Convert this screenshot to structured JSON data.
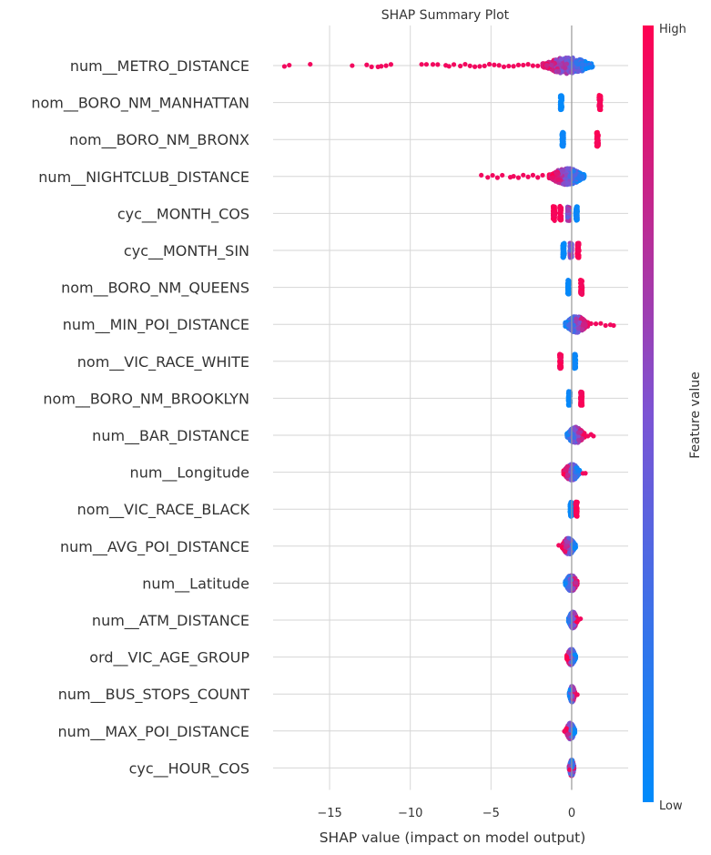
{
  "chart_data": {
    "type": "scatter",
    "title": "SHAP Summary Plot",
    "xlabel": "SHAP value (impact on model output)",
    "ylabel": "",
    "xlim": [
      -18.5,
      3.5
    ],
    "x_ticks": [
      -15,
      -10,
      -5,
      0
    ],
    "x_tick_labels": [
      "−15",
      "−10",
      "−5",
      "0"
    ],
    "grid": true,
    "colorbar": {
      "label": "Feature value",
      "high_label": "High",
      "low_label": "Low",
      "low_color": "#008bfb",
      "high_color": "#ff0051"
    },
    "features": [
      {
        "name": "num__METRO_DISTANCE",
        "min": -17.8,
        "max": 1.5,
        "dense_min": -1.8,
        "dense_max": 1.3,
        "high_side": "left",
        "outliers": [
          -17.8,
          -17.5,
          -16.2,
          -13.6,
          -12.7,
          -12.4,
          -12.0,
          -11.8,
          -11.5,
          -11.2,
          -9.3,
          -9.0,
          -8.6,
          -8.3,
          -7.8,
          -7.6,
          -7.3,
          -6.9,
          -6.6,
          -6.3,
          -6.0,
          -5.7,
          -5.4,
          -5.1,
          -4.8,
          -4.5,
          -4.2,
          -3.9,
          -3.6,
          -3.3,
          -3.0,
          -2.7,
          -2.4,
          -2.1
        ]
      },
      {
        "name": "nom__BORO_NM_MANHATTAN",
        "min": -0.7,
        "max": 1.8,
        "clusters": [
          {
            "center": -0.65,
            "color": "low"
          },
          {
            "center": 1.75,
            "color": "high"
          }
        ]
      },
      {
        "name": "nom__BORO_NM_BRONX",
        "min": -0.6,
        "max": 1.6,
        "clusters": [
          {
            "center": -0.55,
            "color": "low"
          },
          {
            "center": 1.6,
            "color": "high"
          }
        ]
      },
      {
        "name": "num__NIGHTCLUB_DISTANCE",
        "min": -5.6,
        "max": 0.9,
        "dense_min": -1.4,
        "dense_max": 0.8,
        "high_side": "left",
        "outliers": [
          -5.6,
          -5.2,
          -4.9,
          -4.6,
          -4.3,
          -3.8,
          -3.6,
          -3.3,
          -3.0,
          -2.7,
          -2.4,
          -2.1,
          -1.8
        ]
      },
      {
        "name": "cyc__MONTH_COS",
        "min": -1.3,
        "max": 0.5,
        "clusters": [
          {
            "center": -1.1,
            "color": "high"
          },
          {
            "center": -0.7,
            "color": "high"
          },
          {
            "center": -0.2,
            "color": "mixed"
          },
          {
            "center": 0.3,
            "color": "low"
          }
        ]
      },
      {
        "name": "cyc__MONTH_SIN",
        "min": -0.8,
        "max": 0.6,
        "clusters": [
          {
            "center": -0.5,
            "color": "low"
          },
          {
            "center": -0.05,
            "color": "mixed"
          },
          {
            "center": 0.4,
            "color": "high"
          }
        ]
      },
      {
        "name": "nom__BORO_NM_QUEENS",
        "min": -0.25,
        "max": 0.65,
        "clusters": [
          {
            "center": -0.2,
            "color": "low"
          },
          {
            "center": 0.6,
            "color": "high"
          }
        ]
      },
      {
        "name": "num__MIN_POI_DISTANCE",
        "min": -0.4,
        "max": 2.7,
        "dense_min": -0.4,
        "dense_max": 1.0,
        "high_side": "right",
        "outliers": [
          1.2,
          1.5,
          1.8,
          2.1,
          2.4,
          2.6
        ]
      },
      {
        "name": "nom__VIC_RACE_WHITE",
        "min": -0.75,
        "max": 0.25,
        "clusters": [
          {
            "center": -0.7,
            "color": "high"
          },
          {
            "center": 0.2,
            "color": "low"
          }
        ]
      },
      {
        "name": "nom__BORO_NM_BROOKLYN",
        "min": -0.2,
        "max": 0.65,
        "clusters": [
          {
            "center": -0.15,
            "color": "low"
          },
          {
            "center": 0.6,
            "color": "high"
          }
        ]
      },
      {
        "name": "num__BAR_DISTANCE",
        "min": -0.3,
        "max": 1.4,
        "dense_min": -0.3,
        "dense_max": 0.8,
        "high_side": "right",
        "outliers": [
          1.0,
          1.2,
          1.35
        ]
      },
      {
        "name": "num__Longitude",
        "min": -0.6,
        "max": 0.9,
        "dense_min": -0.5,
        "dense_max": 0.5,
        "high_side": "left",
        "outliers": [
          0.7,
          0.85
        ]
      },
      {
        "name": "nom__VIC_RACE_BLACK",
        "min": -0.1,
        "max": 0.35,
        "clusters": [
          {
            "center": -0.05,
            "color": "low"
          },
          {
            "center": 0.3,
            "color": "high"
          }
        ]
      },
      {
        "name": "num__AVG_POI_DISTANCE",
        "min": -0.9,
        "max": 0.3,
        "dense_min": -0.6,
        "dense_max": 0.25,
        "high_side": "left",
        "outliers": [
          -0.8
        ]
      },
      {
        "name": "num__Latitude",
        "min": -0.4,
        "max": 0.35,
        "dense_min": -0.4,
        "dense_max": 0.35,
        "high_side": "right",
        "outliers": []
      },
      {
        "name": "num__ATM_DISTANCE",
        "min": -0.2,
        "max": 0.55,
        "dense_min": -0.2,
        "dense_max": 0.35,
        "high_side": "right",
        "outliers": [
          0.45,
          0.55
        ]
      },
      {
        "name": "ord__VIC_AGE_GROUP",
        "min": -0.35,
        "max": 0.25,
        "dense_min": -0.3,
        "dense_max": 0.25,
        "high_side": "left",
        "outliers": []
      },
      {
        "name": "num__BUS_STOPS_COUNT",
        "min": -0.15,
        "max": 0.4,
        "dense_min": -0.15,
        "dense_max": 0.2,
        "high_side": "right",
        "outliers": [
          0.35
        ]
      },
      {
        "name": "num__MAX_POI_DISTANCE",
        "min": -0.45,
        "max": 0.2,
        "dense_min": -0.35,
        "dense_max": 0.2,
        "high_side": "left",
        "outliers": [
          -0.45
        ]
      },
      {
        "name": "cyc__HOUR_COS",
        "min": -0.15,
        "max": 0.15,
        "dense_min": -0.15,
        "dense_max": 0.15,
        "high_side": "mixed",
        "outliers": []
      }
    ]
  }
}
